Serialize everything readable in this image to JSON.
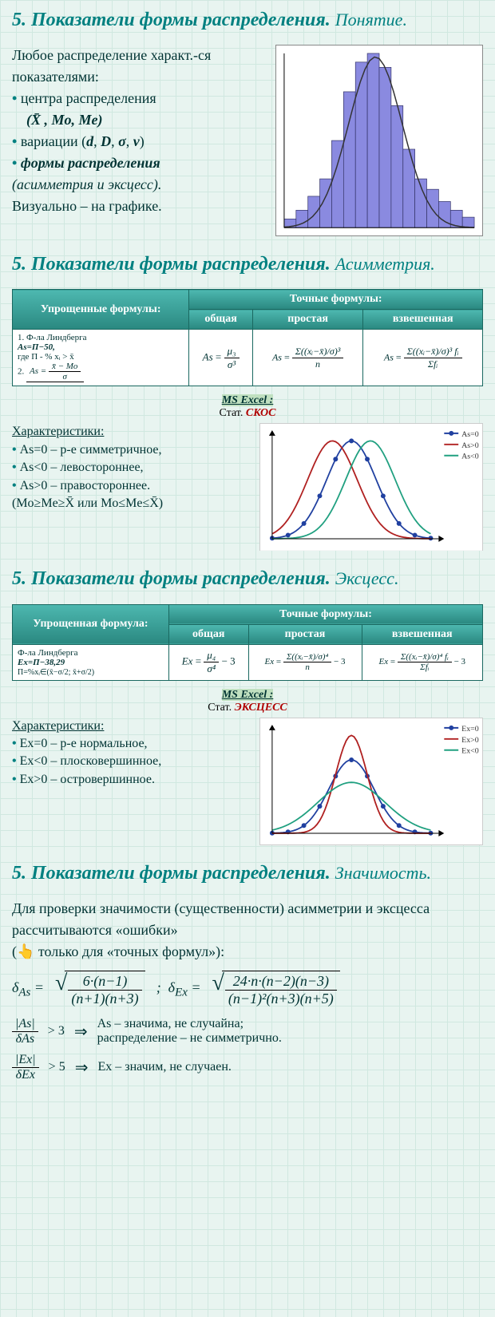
{
  "s1": {
    "heading_main": "5. Показатели формы распределения.",
    "heading_sub": "Понятие.",
    "intro": "Любое распределение характ.-ся показателями:",
    "b1": "центра распределения",
    "b1_sym": "(X̄ , Mo, Me)",
    "b2": "вариации (d, D, σ, v)",
    "b3": "формы распределения",
    "b3_note": "(асимметрия и эксцесс).",
    "visual": "Визуально – на графике."
  },
  "chart1": {
    "type": "histogram",
    "bars": [
      5,
      10,
      18,
      28,
      50,
      78,
      95,
      100,
      92,
      70,
      45,
      28,
      22,
      15,
      10,
      6
    ],
    "bar_color": "#8a8ae0",
    "bar_border": "#333366",
    "curve_color": "#333333",
    "bg": "#ffffff",
    "border": "#888888"
  },
  "s2": {
    "heading_main": "5. Показатели формы распределения.",
    "heading_sub": "Асимметрия.",
    "th_simple": "Упрощенные формулы:",
    "th_exact": "Точные формулы:",
    "th_general": "общая",
    "th_simple_f": "простая",
    "th_weighted": "взвешенная",
    "cell1_l1": "1. Ф-ла Линдберга",
    "cell1_l2": "As=П−50,",
    "cell1_l3": "где П - % xᵢ > x̄",
    "cell1_l4": "2.",
    "excel_label": "MS Excel :",
    "excel_stat_label": "Стат.",
    "excel_stat": "СКОС",
    "char_title": "Характеристики:",
    "c1": "As=0 – р-е симметричное,",
    "c2": "As<0 – левостороннее,",
    "c3": "As>0 – правостороннее.",
    "c4": "(Mo≥Me≥X̄ или Mo≤Me≤X̄)"
  },
  "curves_as": {
    "type": "line",
    "legend": [
      "As=0",
      "As>0",
      "As<0"
    ],
    "colors": [
      "#2040a0",
      "#b02020",
      "#20a080"
    ],
    "bg": "#ffffff"
  },
  "s3": {
    "heading_main": "5. Показатели формы распределения.",
    "heading_sub": "Эксцесс.",
    "th_simple": "Упрощенная формула:",
    "th_exact": "Точные формулы:",
    "th_general": "общая",
    "th_simple_f": "простая",
    "th_weighted": "взвешенная",
    "cell1_l1": "Ф-ла Линдберга",
    "cell1_l2": "Ex=П−38,29",
    "excel_label": "MS Excel :",
    "excel_stat_label": "Стат.",
    "excel_stat": "ЭКСЦЕСС",
    "char_title": "Характеристики:",
    "c1": "Ex=0 – р-е нормальное,",
    "c2": "Ex<0 – плосковершинное,",
    "c3": "Ex>0 – островершинное."
  },
  "curves_ex": {
    "type": "line",
    "legend": [
      "Ex=0",
      "Ex>0",
      "Ex<0"
    ],
    "colors": [
      "#2040a0",
      "#b02020",
      "#20a080"
    ],
    "bg": "#ffffff"
  },
  "s4": {
    "heading_main": "5. Показатели формы распределения.",
    "heading_sub": "Значимость.",
    "intro1": "Для проверки значимости (существенности) асимметрии и эксцесса рассчитываются «ошибки»",
    "intro2": "(👆 только для «точных формул»):",
    "delta_as_label": "δ",
    "delta_as_sub": "As",
    "delta_as_num": "6·(n−1)",
    "delta_as_den": "(n+1)(n+3)",
    "delta_ex_sub": "Ex",
    "delta_ex_num": "24·n·(n−2)(n−3)",
    "delta_ex_den": "(n−1)²(n+3)(n+5)",
    "cond1_lhs_num": "|As|",
    "cond1_lhs_den": "δAs",
    "cond1_op": "> 3",
    "cond1_text": "As – значима, не случайна;\nраспределение – не симметрично.",
    "cond2_lhs_num": "|Ex|",
    "cond2_lhs_den": "δEx",
    "cond2_op": "> 5",
    "cond2_text": "Ex – значим, не случаен."
  }
}
